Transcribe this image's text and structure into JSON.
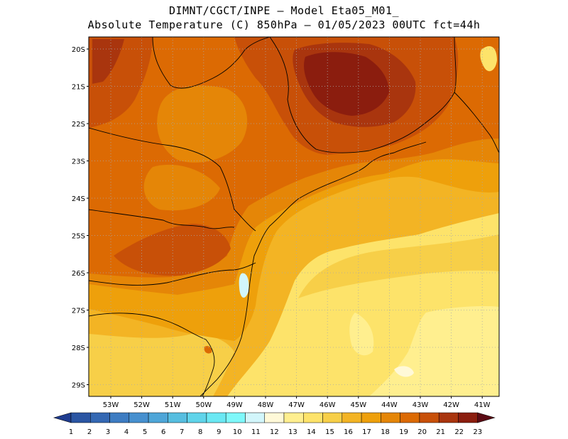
{
  "header": {
    "line1": "DIMNT/CGCT/INPE —  Model Eta05_M01_",
    "line2": "Absolute Temperature (C) 850hPa —  01/05/2023 00UTC fct=44h"
  },
  "chart_data": {
    "type": "heatmap",
    "title": "Absolute Temperature (C) 850hPa",
    "lat_labels": [
      "20S",
      "21S",
      "22S",
      "23S",
      "24S",
      "25S",
      "26S",
      "27S",
      "28S",
      "29S"
    ],
    "lon_labels": [
      "53W",
      "52W",
      "51W",
      "50W",
      "49W",
      "48W",
      "47W",
      "46W",
      "45W",
      "44W",
      "43W",
      "42W",
      "41W"
    ],
    "colorbar": {
      "values": [
        "1",
        "2",
        "3",
        "4",
        "5",
        "6",
        "7",
        "8",
        "9",
        "10",
        "11",
        "12",
        "13",
        "14",
        "15",
        "16",
        "17",
        "18",
        "19",
        "20",
        "21",
        "22",
        "23"
      ],
      "colors": [
        "#1f3c8f",
        "#2a55a3",
        "#3468b3",
        "#3d7cc2",
        "#4690cf",
        "#4ea6d8",
        "#56bee0",
        "#5fd4ea",
        "#6ae8f3",
        "#7ef8fa",
        "#d2f6fb",
        "#fff9d8",
        "#ffef8f",
        "#fde36a",
        "#f7cf48",
        "#f3b424",
        "#eea00b",
        "#e58607",
        "#dc6a03",
        "#c85008",
        "#a9350e",
        "#8b1d0e",
        "#5b0a14"
      ]
    },
    "grid": true
  }
}
